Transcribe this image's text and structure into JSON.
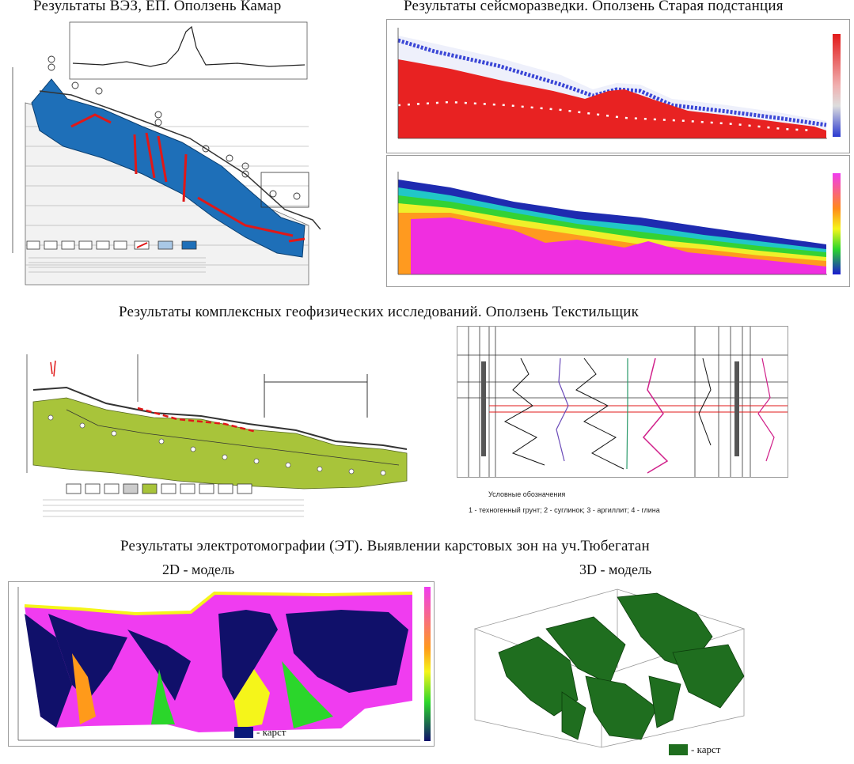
{
  "titles": {
    "ves": "Результаты ВЭЗ, ЕП. Оползень Камар",
    "seismic": "Результаты сейсморазведки. Оползень Старая подстанция",
    "complex": "Результаты комплексных геофизических исследований. Оползень Текстильщик",
    "et": "Результаты электротомографии (ЭТ). Выявлении карстовых зон на уч.Тюбегатан"
  },
  "et_models": {
    "model_2d": "2D - модель",
    "model_3d": "3D - модель",
    "legend_2d": "- карст",
    "legend_3d": "- карст"
  },
  "well_log": {
    "note": "1 - техногенный грунт; 2 - суглинок; 3 - аргиллит; 4 - глина",
    "legend_title": "Условные обозначения"
  },
  "colors": {
    "clay_blue": "#1e6fb8",
    "fault_red": "#e01818",
    "karst_navy": "#0a1a7a",
    "karst_green": "#1f6e1f",
    "loess_green": "#a8c43a"
  }
}
